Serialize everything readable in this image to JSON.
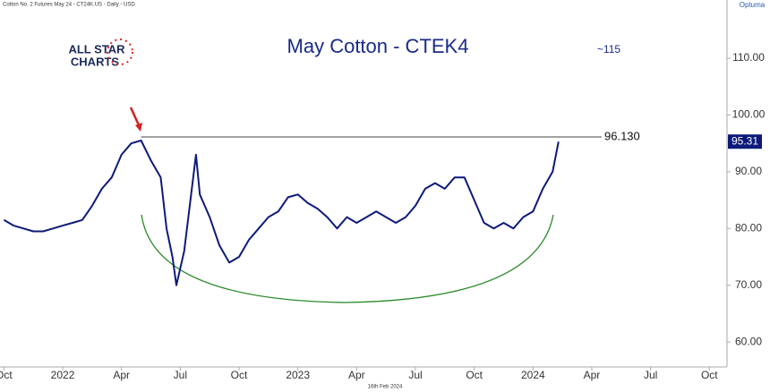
{
  "chart_data": {
    "type": "line",
    "title": "May Cotton - CTEK4",
    "header": "Cotton No. 2 Futures May 24 - CT24K.US - Daily - USD",
    "footer": "16th Feb 2024",
    "brand": "Optuma",
    "logo": [
      "ALL STAR",
      "CHARTS"
    ],
    "annotation": "~115",
    "resistance": {
      "value": 96.13,
      "label": "96.130",
      "from_x": 7
    },
    "last_price": 95.31,
    "x": [
      0,
      0.5,
      1,
      1.5,
      2,
      2.5,
      3,
      3.5,
      4,
      4.5,
      5,
      5.5,
      6,
      6.5,
      7,
      7.5,
      8,
      8.3,
      8.6,
      8.8,
      9.2,
      9.8,
      10,
      10.5,
      11,
      11.5,
      12,
      12.5,
      13,
      13.5,
      14,
      14.5,
      15,
      15.5,
      16,
      16.5,
      17,
      17.5,
      18,
      18.5,
      19,
      19.5,
      20,
      20.5,
      21,
      21.5,
      22,
      22.5,
      23,
      23.5,
      24,
      24.5,
      25,
      25.5,
      26,
      26.5,
      27,
      27.5,
      28,
      28.3
    ],
    "series": [
      {
        "name": "CTEK4",
        "color": "#0d1a7a",
        "values": [
          81.5,
          80.5,
          80,
          79.5,
          79.5,
          80,
          80.5,
          81,
          81.5,
          84,
          87,
          89,
          93,
          95,
          95.5,
          92,
          89,
          80,
          75,
          70,
          76,
          93,
          86,
          82,
          77,
          74,
          75,
          78,
          80,
          82,
          83,
          85.5,
          86,
          84.5,
          83.5,
          82,
          80,
          82,
          81,
          82,
          83,
          82,
          81,
          82,
          84,
          87,
          88,
          87,
          89,
          89,
          85,
          81,
          80,
          81,
          80,
          82,
          83,
          87,
          90,
          95.3
        ]
      }
    ],
    "xlim": [
      -0.2,
      36.9
    ],
    "ylim": [
      56,
      119
    ],
    "xticks": [
      {
        "value": 0,
        "label": "Oct"
      },
      {
        "value": 3,
        "label": "2022"
      },
      {
        "value": 6,
        "label": "Apr"
      },
      {
        "value": 9,
        "label": "Jul"
      },
      {
        "value": 12,
        "label": "Oct"
      },
      {
        "value": 15,
        "label": "2023"
      },
      {
        "value": 18,
        "label": "Apr"
      },
      {
        "value": 21,
        "label": "Jul"
      },
      {
        "value": 24,
        "label": "Oct"
      },
      {
        "value": 27,
        "label": "2024"
      },
      {
        "value": 30,
        "label": "Apr"
      },
      {
        "value": 33,
        "label": "Jul"
      },
      {
        "value": 36,
        "label": "Oct"
      }
    ],
    "yticks": [
      {
        "value": 60,
        "label": "60.00"
      },
      {
        "value": 70,
        "label": "70.00"
      },
      {
        "value": 80,
        "label": "80.00"
      },
      {
        "value": 90,
        "label": "90.00"
      },
      {
        "value": 100,
        "label": "100.00"
      },
      {
        "value": 110,
        "label": "110.00"
      }
    ],
    "grid": false
  }
}
